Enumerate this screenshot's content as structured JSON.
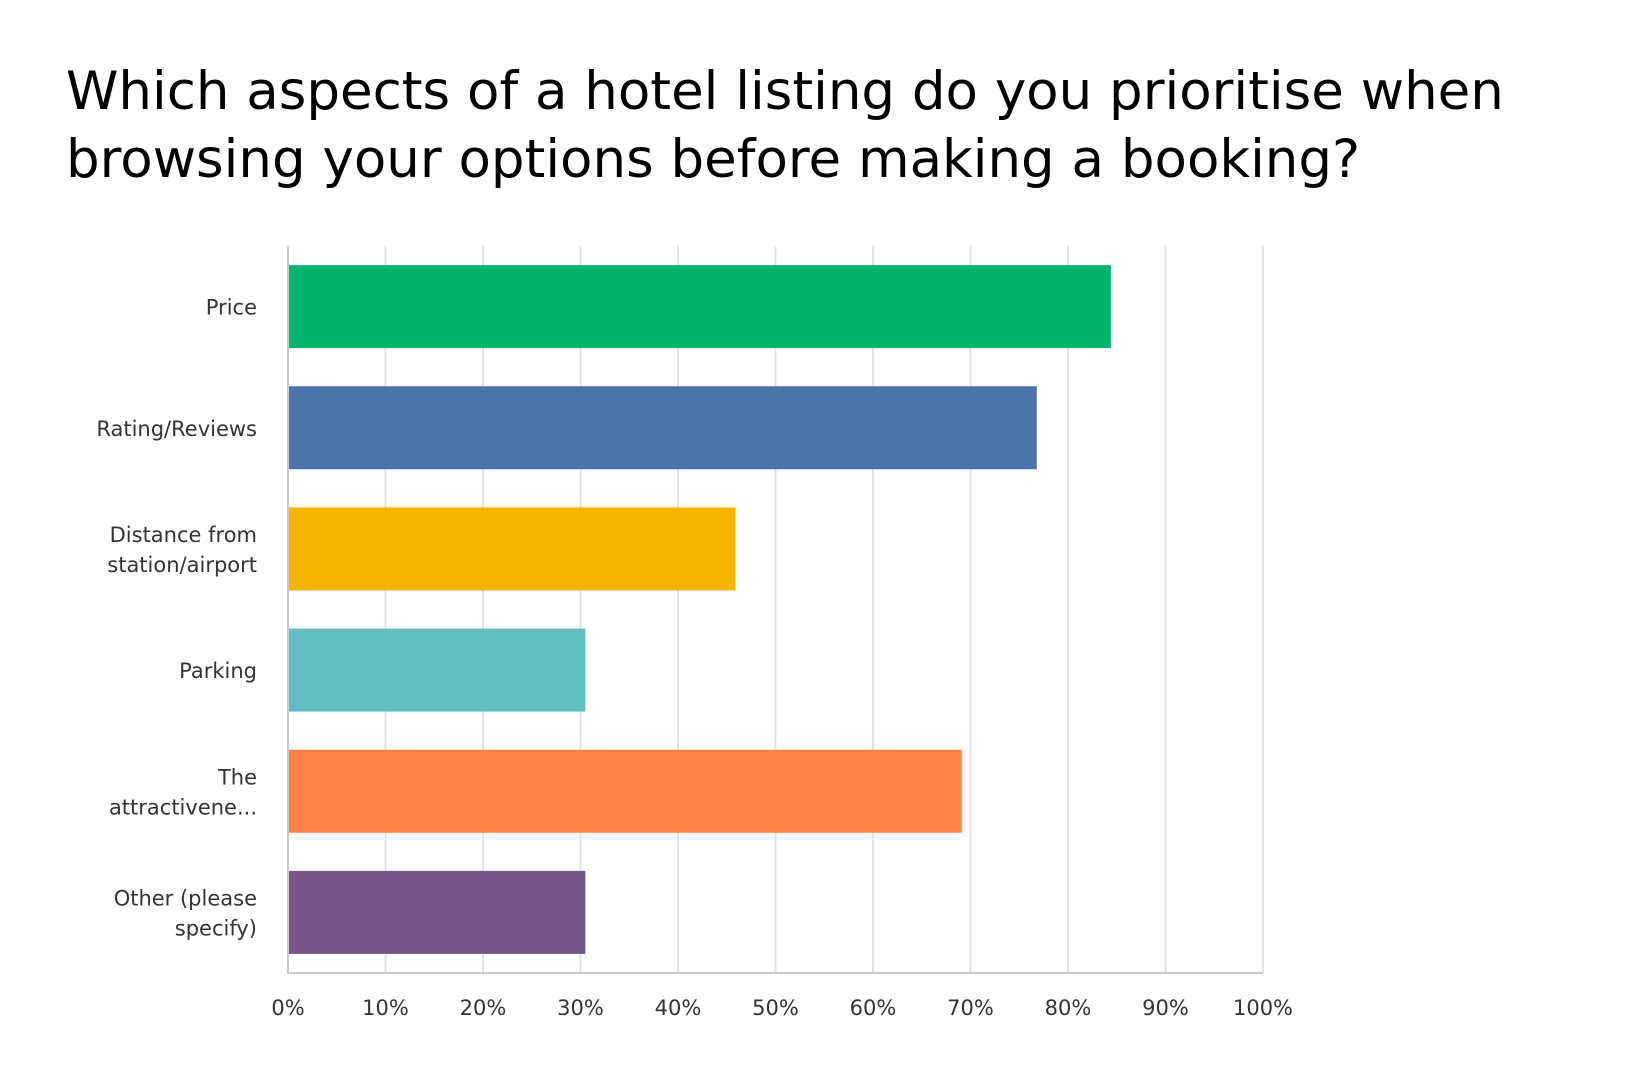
{
  "chart_data": {
    "type": "bar",
    "orientation": "horizontal",
    "title": "Which aspects of a hotel listing do you prioritise when browsing your options before making a booking?",
    "categories": [
      [
        "Price"
      ],
      [
        "Rating/Reviews"
      ],
      [
        "Distance from",
        "station/airport"
      ],
      [
        "Parking"
      ],
      [
        "The",
        "attractivene..."
      ],
      [
        "Other (please",
        "specify)"
      ]
    ],
    "values": [
      84.4,
      76.8,
      45.9,
      30.5,
      69.1,
      30.5
    ],
    "colors": [
      "#00b36b",
      "#4a74aa",
      "#f5b400",
      "#62bec1",
      "#ff814b",
      "#74568a"
    ],
    "xlim": [
      0,
      100
    ],
    "xticks": [
      "0%",
      "10%",
      "20%",
      "30%",
      "40%",
      "50%",
      "60%",
      "70%",
      "80%",
      "90%",
      "100%"
    ],
    "grid": true,
    "xlabel": "",
    "ylabel": ""
  }
}
